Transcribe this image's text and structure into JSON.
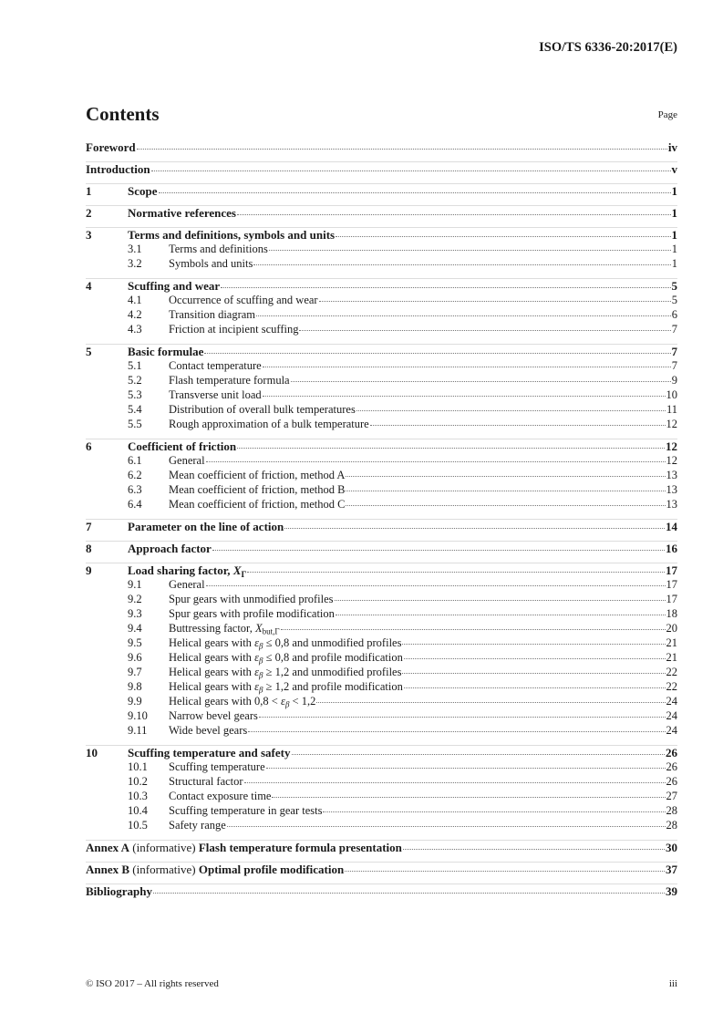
{
  "header": {
    "doc_id": "ISO/TS 6336-20:2017(E)"
  },
  "contents_title": "Contents",
  "page_label": "Page",
  "toc": [
    {
      "level": "main",
      "num": "",
      "title": [
        {
          "t": "Foreword"
        }
      ],
      "page": "iv"
    },
    {
      "level": "main",
      "num": "",
      "title": [
        {
          "t": "Introduction"
        }
      ],
      "page": "v"
    },
    {
      "level": "main",
      "num": "1",
      "title": [
        {
          "t": "Scope"
        }
      ],
      "page": "1"
    },
    {
      "level": "main",
      "num": "2",
      "title": [
        {
          "t": "Normative references"
        }
      ],
      "page": "1"
    },
    {
      "level": "main",
      "num": "3",
      "title": [
        {
          "t": "Terms and definitions, symbols and units"
        }
      ],
      "page": "1"
    },
    {
      "level": "sub",
      "num": "3.1",
      "title": [
        {
          "t": "Terms and definitions"
        }
      ],
      "page": "1"
    },
    {
      "level": "sub",
      "num": "3.2",
      "title": [
        {
          "t": "Symbols and units"
        }
      ],
      "page": "1"
    },
    {
      "level": "main",
      "num": "4",
      "title": [
        {
          "t": "Scuffing and wear"
        }
      ],
      "page": "5"
    },
    {
      "level": "sub",
      "num": "4.1",
      "title": [
        {
          "t": "Occurrence of scuffing and wear"
        }
      ],
      "page": "5"
    },
    {
      "level": "sub",
      "num": "4.2",
      "title": [
        {
          "t": "Transition diagram"
        }
      ],
      "page": "6"
    },
    {
      "level": "sub",
      "num": "4.3",
      "title": [
        {
          "t": "Friction at incipient scuffing"
        }
      ],
      "page": "7"
    },
    {
      "level": "main",
      "num": "5",
      "title": [
        {
          "t": "Basic formulae"
        }
      ],
      "page": "7"
    },
    {
      "level": "sub",
      "num": "5.1",
      "title": [
        {
          "t": "Contact temperature"
        }
      ],
      "page": "7"
    },
    {
      "level": "sub",
      "num": "5.2",
      "title": [
        {
          "t": "Flash temperature formula"
        }
      ],
      "page": "9"
    },
    {
      "level": "sub",
      "num": "5.3",
      "title": [
        {
          "t": "Transverse unit load"
        }
      ],
      "page": "10"
    },
    {
      "level": "sub",
      "num": "5.4",
      "title": [
        {
          "t": "Distribution of overall bulk temperatures"
        }
      ],
      "page": "11"
    },
    {
      "level": "sub",
      "num": "5.5",
      "title": [
        {
          "t": "Rough approximation of a bulk temperature"
        }
      ],
      "page": "12"
    },
    {
      "level": "main",
      "num": "6",
      "title": [
        {
          "t": "Coefficient of friction"
        }
      ],
      "page": "12"
    },
    {
      "level": "sub",
      "num": "6.1",
      "title": [
        {
          "t": "General"
        }
      ],
      "page": "12"
    },
    {
      "level": "sub",
      "num": "6.2",
      "title": [
        {
          "t": "Mean coefficient of friction, method A"
        }
      ],
      "page": "13"
    },
    {
      "level": "sub",
      "num": "6.3",
      "title": [
        {
          "t": "Mean coefficient of friction, method B"
        }
      ],
      "page": "13"
    },
    {
      "level": "sub",
      "num": "6.4",
      "title": [
        {
          "t": "Mean coefficient of friction, method C"
        }
      ],
      "page": "13"
    },
    {
      "level": "main",
      "num": "7",
      "title": [
        {
          "t": "Parameter on the line of action"
        }
      ],
      "page": "14"
    },
    {
      "level": "main",
      "num": "8",
      "title": [
        {
          "t": "Approach factor"
        }
      ],
      "page": "16"
    },
    {
      "level": "main",
      "num": "9",
      "title": [
        {
          "t": "Load sharing factor, "
        },
        {
          "t": "X",
          "s": "it"
        },
        {
          "t": "Γ",
          "s": "sub-s"
        }
      ],
      "page": "17"
    },
    {
      "level": "sub",
      "num": "9.1",
      "title": [
        {
          "t": "General"
        }
      ],
      "page": "17"
    },
    {
      "level": "sub",
      "num": "9.2",
      "title": [
        {
          "t": "Spur gears with unmodified profiles"
        }
      ],
      "page": "17"
    },
    {
      "level": "sub",
      "num": "9.3",
      "title": [
        {
          "t": "Spur gears with profile modification"
        }
      ],
      "page": "18"
    },
    {
      "level": "sub",
      "num": "9.4",
      "title": [
        {
          "t": "Buttressing factor, "
        },
        {
          "t": "X",
          "s": "it"
        },
        {
          "t": "but,Γ",
          "s": "sub-s"
        }
      ],
      "page": "20"
    },
    {
      "level": "sub",
      "num": "9.5",
      "title": [
        {
          "t": "Helical gears with "
        },
        {
          "t": "ε",
          "s": "it"
        },
        {
          "t": "β",
          "s": "sub-s it"
        },
        {
          "t": " ≤ 0,8 and unmodified profiles"
        }
      ],
      "page": "21"
    },
    {
      "level": "sub",
      "num": "9.6",
      "title": [
        {
          "t": "Helical gears with "
        },
        {
          "t": "ε",
          "s": "it"
        },
        {
          "t": "β",
          "s": "sub-s it"
        },
        {
          "t": " ≤ 0,8 and profile modification"
        }
      ],
      "page": "21"
    },
    {
      "level": "sub",
      "num": "9.7",
      "title": [
        {
          "t": "Helical gears with "
        },
        {
          "t": "ε",
          "s": "it"
        },
        {
          "t": "β",
          "s": "sub-s it"
        },
        {
          "t": " ≥ 1,2 and unmodified profiles"
        }
      ],
      "page": "22"
    },
    {
      "level": "sub",
      "num": "9.8",
      "title": [
        {
          "t": "Helical gears with "
        },
        {
          "t": "ε",
          "s": "it"
        },
        {
          "t": "β",
          "s": "sub-s it"
        },
        {
          "t": " ≥ 1,2 and profile modification"
        }
      ],
      "page": "22"
    },
    {
      "level": "sub",
      "num": "9.9",
      "title": [
        {
          "t": "Helical gears with 0,8 < "
        },
        {
          "t": "ε",
          "s": "it"
        },
        {
          "t": "β",
          "s": "sub-s it"
        },
        {
          "t": " < 1,2"
        }
      ],
      "page": "24"
    },
    {
      "level": "sub",
      "num": "9.10",
      "title": [
        {
          "t": "Narrow bevel gears"
        }
      ],
      "page": "24"
    },
    {
      "level": "sub",
      "num": "9.11",
      "title": [
        {
          "t": "Wide bevel gears"
        }
      ],
      "page": "24"
    },
    {
      "level": "main",
      "num": "10",
      "title": [
        {
          "t": "Scuffing temperature and safety"
        }
      ],
      "page": "26"
    },
    {
      "level": "sub",
      "num": "10.1",
      "title": [
        {
          "t": "Scuffing temperature"
        }
      ],
      "page": "26"
    },
    {
      "level": "sub",
      "num": "10.2",
      "title": [
        {
          "t": "Structural factor"
        }
      ],
      "page": "26"
    },
    {
      "level": "sub",
      "num": "10.3",
      "title": [
        {
          "t": "Contact exposure time"
        }
      ],
      "page": "27"
    },
    {
      "level": "sub",
      "num": "10.4",
      "title": [
        {
          "t": "Scuffing temperature in gear tests"
        }
      ],
      "page": "28"
    },
    {
      "level": "sub",
      "num": "10.5",
      "title": [
        {
          "t": "Safety range"
        }
      ],
      "page": "28"
    },
    {
      "level": "main",
      "num": "",
      "title": [
        {
          "t": "Annex A"
        },
        {
          "t": " (informative) ",
          "s": "norm"
        },
        {
          "t": "Flash temperature formula presentation"
        }
      ],
      "page": "30"
    },
    {
      "level": "main",
      "num": "",
      "title": [
        {
          "t": "Annex B"
        },
        {
          "t": " (informative) ",
          "s": "norm"
        },
        {
          "t": "Optimal profile modification"
        }
      ],
      "page": "37"
    },
    {
      "level": "main",
      "num": "",
      "title": [
        {
          "t": "Bibliography"
        }
      ],
      "page": "39"
    }
  ],
  "footer": {
    "copyright": "© ISO 2017 – All rights reserved",
    "page_number": "iii"
  }
}
